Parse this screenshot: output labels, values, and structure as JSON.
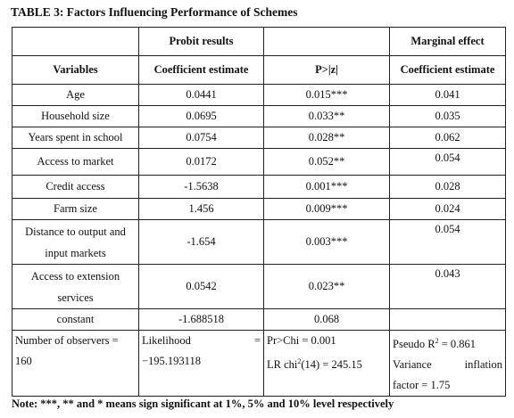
{
  "title": "TABLE 3: Factors Influencing Performance of Schemes",
  "headers": {
    "probit": "Probit results",
    "marginal": "Marginal effect",
    "variables": "Variables",
    "coef1": "Coefficient estimate",
    "pval": "P>|z|",
    "coef2": "Coefficient estimate"
  },
  "rows": [
    {
      "var": "Age",
      "coef": "0.0441",
      "p": "0.015***",
      "me": "0.041"
    },
    {
      "var": "Household size",
      "coef": "0.0695",
      "p": "0.033**",
      "me": "0.035"
    },
    {
      "var": "Years spent in school",
      "coef": "0.0754",
      "p": "0.028**",
      "me": "0.062"
    },
    {
      "var": "Access to market",
      "coef": "0.0172",
      "p": "0.052**",
      "me": "0.054"
    },
    {
      "var": "Credit access",
      "coef": "-1.5638",
      "p": "0.001***",
      "me": "0.028"
    },
    {
      "var": "Farm size",
      "coef": "1.456",
      "p": "0.009***",
      "me": "0.024"
    },
    {
      "var_line1": "Distance to output and",
      "var_line2": "input markets",
      "coef": "-1.654",
      "p": "0.003***",
      "me": "0.054"
    },
    {
      "var_line1": "Access to extension",
      "var_line2": "services",
      "coef": "0.0542",
      "p": "0.023**",
      "me": "0.043"
    },
    {
      "var": "constant",
      "coef": "-1.688518",
      "p": "0.068",
      "me": ""
    }
  ],
  "summary": {
    "obs_label": "Number of observers =",
    "obs_value": "160",
    "likelihood_label": "Likelihood",
    "likelihood_eq": "=",
    "likelihood_value": "−195.193118",
    "prchi": "Pr>Chi = 0.001",
    "lrchi_pre": "LR chi",
    "lrchi_sup": "2",
    "lrchi_post": "(14) = 245.15",
    "pseudo_pre": "Pseudo R",
    "pseudo_sup": "2",
    "pseudo_post": " = 0.861",
    "vif_word1": "Variance",
    "vif_word2": "inflation",
    "vif_line2": "factor = 1.75"
  },
  "note": "Note: ***, ** and * means sign significant at 1%, 5% and 10% level respectively"
}
